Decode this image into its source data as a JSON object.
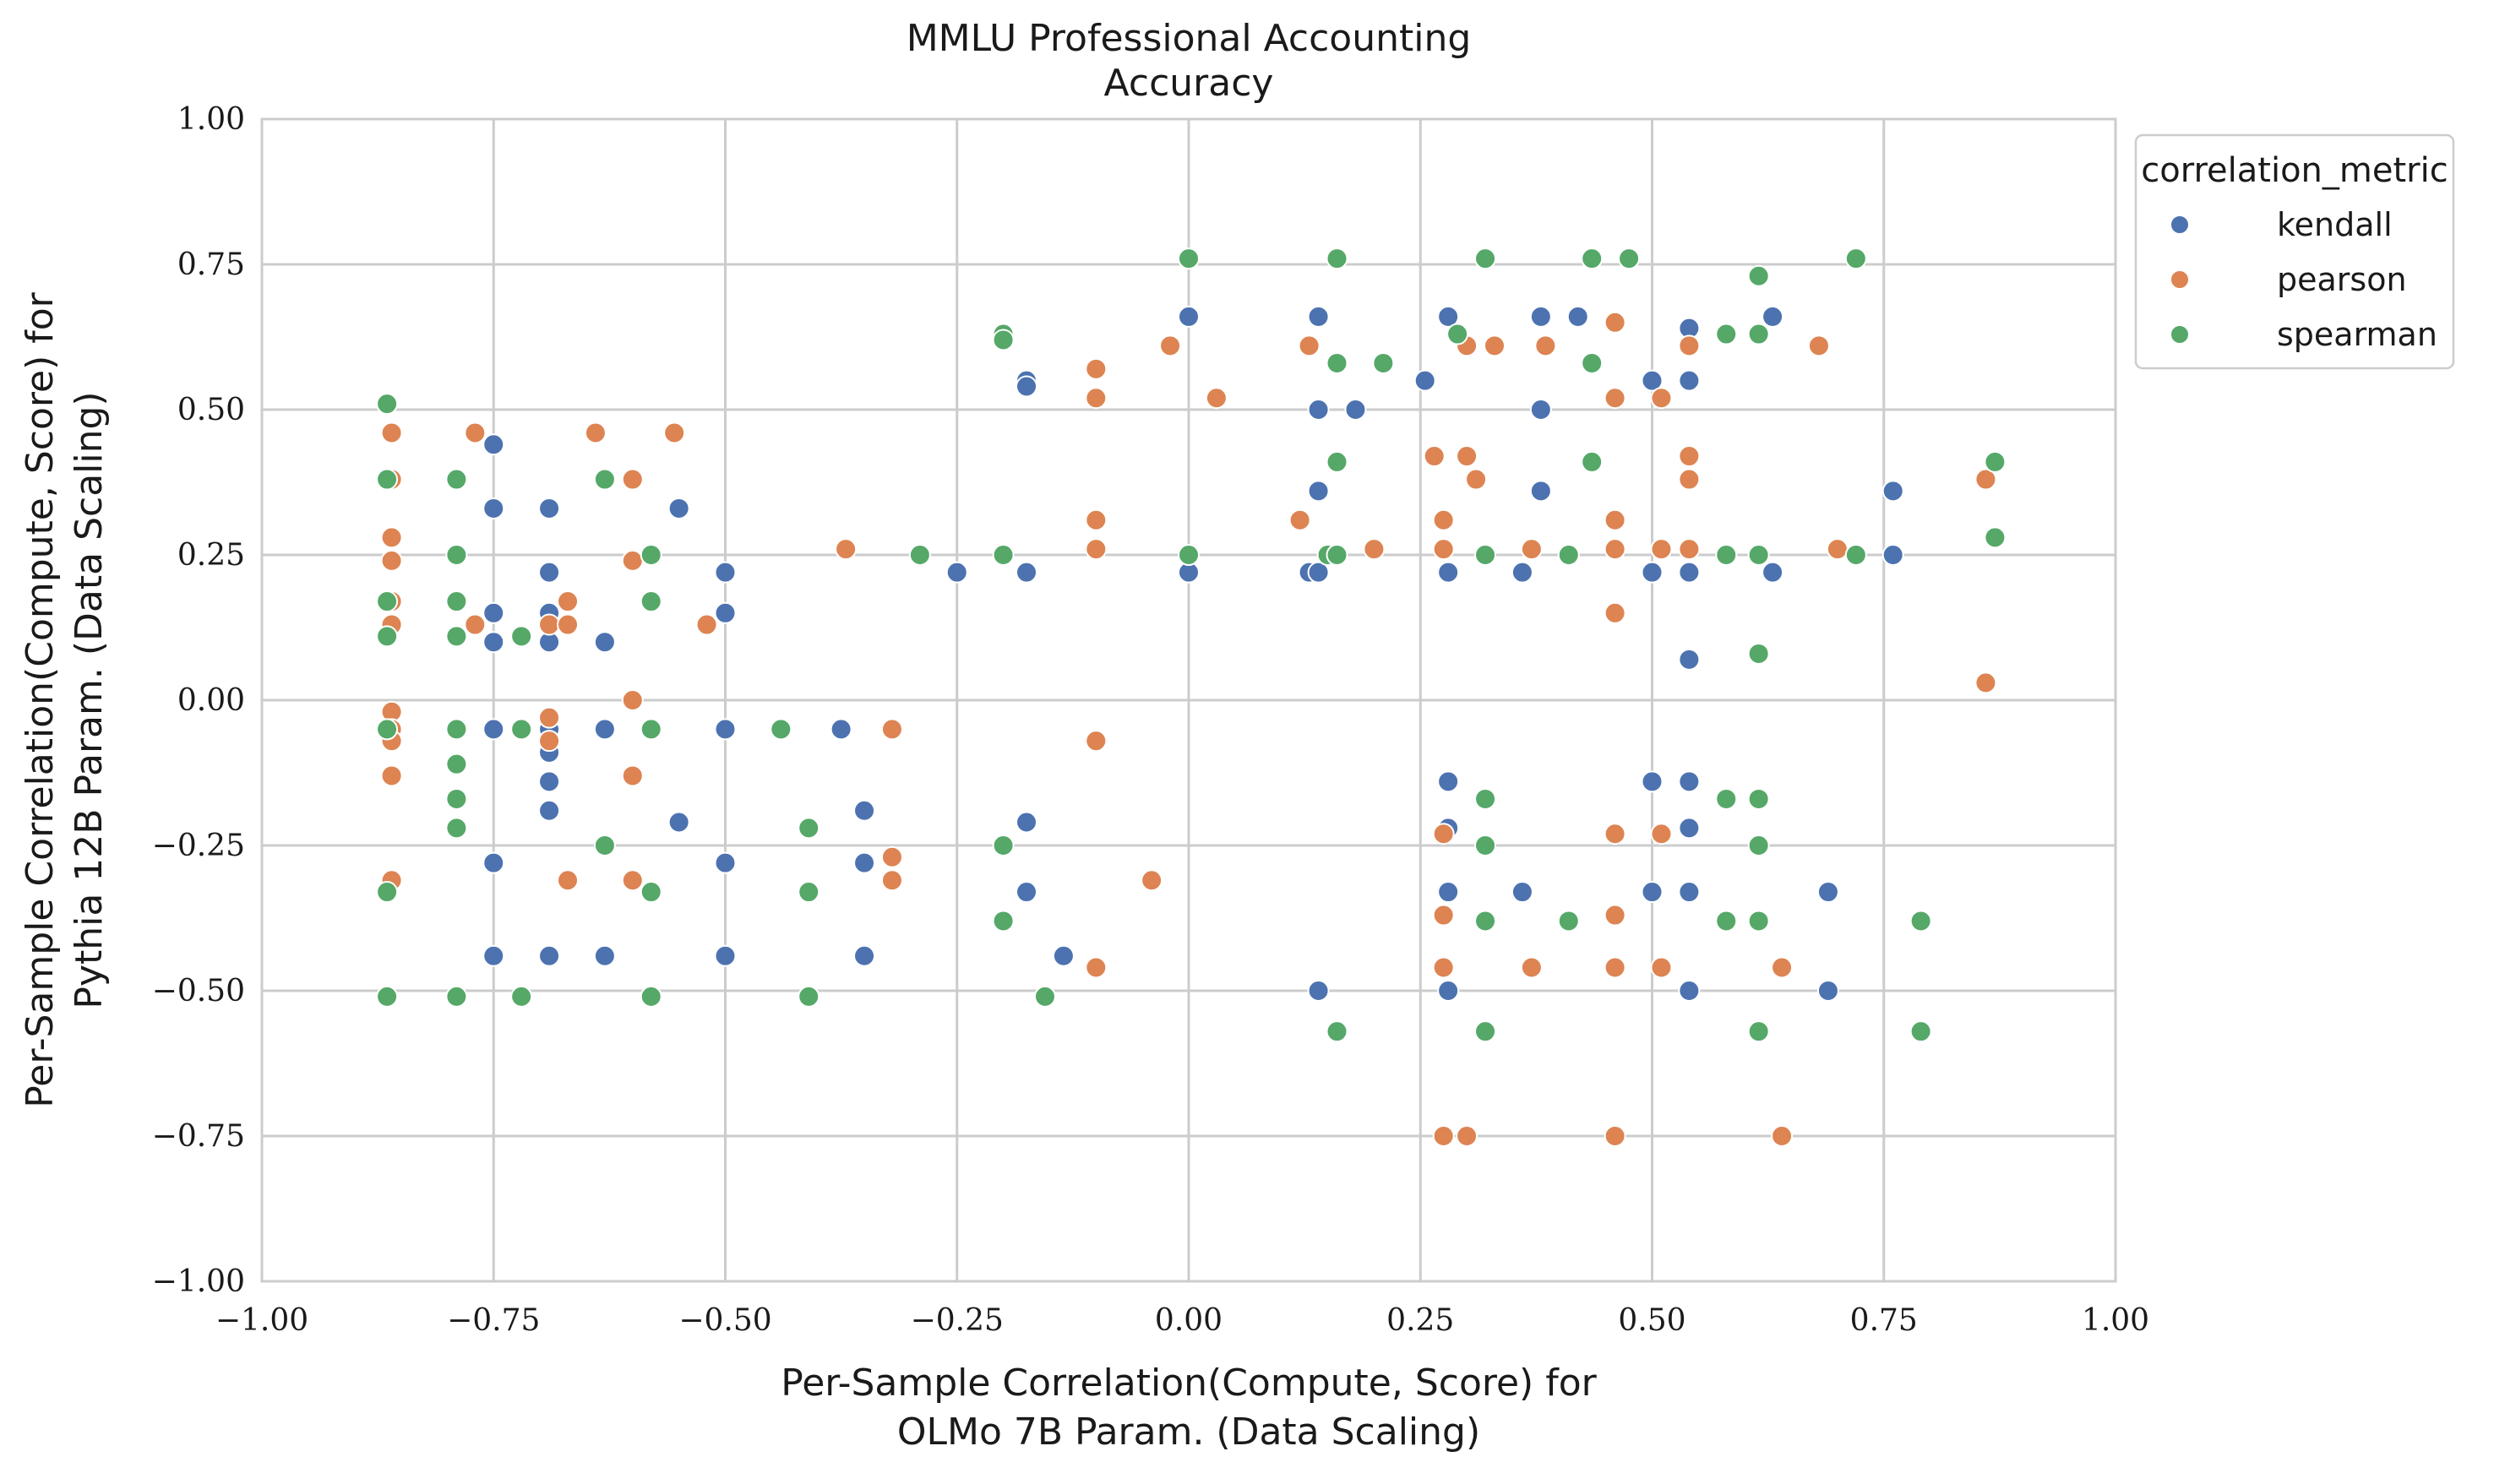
{
  "chart_data": {
    "type": "scatter",
    "title": "MMLU Professional Accounting",
    "subtitle": "Accuracy",
    "xlabel_line1": "Per-Sample Correlation(Compute, Score) for",
    "xlabel_line2": "OLMo 7B Param. (Data Scaling)",
    "ylabel_line1": "Per-Sample Correlation(Compute, Score) for",
    "ylabel_line2": "Pythia 12B Param. (Data Scaling)",
    "xlim": [
      -1.0,
      1.0
    ],
    "ylim": [
      -1.0,
      1.0
    ],
    "x_ticks": [
      "−1.00",
      "−0.75",
      "−0.50",
      "−0.25",
      "0.00",
      "0.25",
      "0.50",
      "0.75",
      "1.00"
    ],
    "y_ticks": [
      "−1.00",
      "−0.75",
      "−0.50",
      "−0.25",
      "0.00",
      "0.25",
      "0.50",
      "0.75",
      "1.00"
    ],
    "grid": true,
    "legend_title": "correlation_metric",
    "legend_position": "outside-top-right",
    "series": [
      {
        "name": "kendall",
        "color": "#4c72b0",
        "points": [
          [
            -0.75,
            0.44
          ],
          [
            -0.75,
            0.33
          ],
          [
            -0.75,
            0.15
          ],
          [
            -0.75,
            0.1
          ],
          [
            -0.75,
            -0.05
          ],
          [
            -0.75,
            -0.28
          ],
          [
            -0.75,
            -0.44
          ],
          [
            -0.69,
            0.33
          ],
          [
            -0.69,
            0.22
          ],
          [
            -0.69,
            0.15
          ],
          [
            -0.69,
            0.1
          ],
          [
            -0.69,
            -0.05
          ],
          [
            -0.69,
            -0.09
          ],
          [
            -0.69,
            -0.14
          ],
          [
            -0.69,
            -0.19
          ],
          [
            -0.69,
            -0.44
          ],
          [
            -0.63,
            0.1
          ],
          [
            -0.63,
            -0.05
          ],
          [
            -0.63,
            -0.44
          ],
          [
            -0.55,
            0.33
          ],
          [
            -0.55,
            -0.21
          ],
          [
            -0.5,
            0.22
          ],
          [
            -0.5,
            0.15
          ],
          [
            -0.5,
            -0.05
          ],
          [
            -0.5,
            -0.28
          ],
          [
            -0.5,
            -0.44
          ],
          [
            -0.375,
            -0.05
          ],
          [
            -0.35,
            -0.19
          ],
          [
            -0.35,
            -0.28
          ],
          [
            -0.35,
            -0.44
          ],
          [
            -0.25,
            0.22
          ],
          [
            -0.175,
            0.55
          ],
          [
            -0.175,
            0.54
          ],
          [
            -0.175,
            0.22
          ],
          [
            -0.175,
            -0.21
          ],
          [
            -0.175,
            -0.33
          ],
          [
            -0.135,
            -0.44
          ],
          [
            0.0,
            0.66
          ],
          [
            0.0,
            0.22
          ],
          [
            0.13,
            0.22
          ],
          [
            0.14,
            0.22
          ],
          [
            0.14,
            0.66
          ],
          [
            0.14,
            0.5
          ],
          [
            0.14,
            0.36
          ],
          [
            0.14,
            -0.5
          ],
          [
            0.18,
            0.5
          ],
          [
            0.255,
            0.55
          ],
          [
            0.28,
            0.66
          ],
          [
            0.28,
            0.22
          ],
          [
            0.28,
            -0.14
          ],
          [
            0.28,
            -0.22
          ],
          [
            0.28,
            -0.33
          ],
          [
            0.28,
            -0.5
          ],
          [
            0.36,
            0.22
          ],
          [
            0.36,
            -0.33
          ],
          [
            0.38,
            0.66
          ],
          [
            0.38,
            0.5
          ],
          [
            0.38,
            0.36
          ],
          [
            0.42,
            0.66
          ],
          [
            0.5,
            0.55
          ],
          [
            0.5,
            0.22
          ],
          [
            0.5,
            -0.14
          ],
          [
            0.5,
            -0.33
          ],
          [
            0.54,
            0.64
          ],
          [
            0.54,
            0.55
          ],
          [
            0.54,
            0.22
          ],
          [
            0.54,
            0.07
          ],
          [
            0.54,
            -0.14
          ],
          [
            0.54,
            -0.22
          ],
          [
            0.54,
            -0.33
          ],
          [
            0.54,
            -0.5
          ],
          [
            0.63,
            0.66
          ],
          [
            0.63,
            0.22
          ],
          [
            0.69,
            -0.33
          ],
          [
            0.69,
            -0.5
          ],
          [
            0.76,
            0.36
          ],
          [
            0.76,
            0.25
          ]
        ]
      },
      {
        "name": "pearson",
        "color": "#dd8452",
        "points": [
          [
            -0.86,
            0.46
          ],
          [
            -0.86,
            0.38
          ],
          [
            -0.86,
            0.28
          ],
          [
            -0.86,
            0.24
          ],
          [
            -0.86,
            0.17
          ],
          [
            -0.86,
            0.13
          ],
          [
            -0.86,
            -0.02
          ],
          [
            -0.86,
            -0.05
          ],
          [
            -0.86,
            -0.07
          ],
          [
            -0.86,
            -0.13
          ],
          [
            -0.86,
            -0.31
          ],
          [
            -0.77,
            0.46
          ],
          [
            -0.77,
            0.13
          ],
          [
            -0.69,
            0.13
          ],
          [
            -0.69,
            -0.03
          ],
          [
            -0.69,
            -0.07
          ],
          [
            -0.67,
            0.17
          ],
          [
            -0.67,
            0.13
          ],
          [
            -0.67,
            -0.31
          ],
          [
            -0.64,
            0.46
          ],
          [
            -0.6,
            0.38
          ],
          [
            -0.6,
            0.24
          ],
          [
            -0.6,
            0.0
          ],
          [
            -0.6,
            -0.13
          ],
          [
            -0.6,
            -0.31
          ],
          [
            -0.555,
            0.46
          ],
          [
            -0.52,
            0.13
          ],
          [
            -0.37,
            0.26
          ],
          [
            -0.32,
            -0.05
          ],
          [
            -0.32,
            -0.27
          ],
          [
            -0.32,
            -0.31
          ],
          [
            -0.1,
            0.57
          ],
          [
            -0.1,
            0.52
          ],
          [
            -0.1,
            0.31
          ],
          [
            -0.1,
            0.26
          ],
          [
            -0.1,
            -0.07
          ],
          [
            -0.1,
            -0.46
          ],
          [
            -0.04,
            -0.31
          ],
          [
            -0.02,
            0.61
          ],
          [
            0.03,
            0.52
          ],
          [
            0.12,
            0.31
          ],
          [
            0.13,
            0.61
          ],
          [
            0.2,
            0.26
          ],
          [
            0.265,
            0.42
          ],
          [
            0.275,
            0.31
          ],
          [
            0.275,
            0.26
          ],
          [
            0.275,
            -0.23
          ],
          [
            0.275,
            -0.37
          ],
          [
            0.275,
            -0.46
          ],
          [
            0.275,
            -0.75
          ],
          [
            0.3,
            0.61
          ],
          [
            0.3,
            0.42
          ],
          [
            0.31,
            0.38
          ],
          [
            0.3,
            -0.75
          ],
          [
            0.33,
            0.61
          ],
          [
            0.37,
            0.26
          ],
          [
            0.37,
            -0.46
          ],
          [
            0.385,
            0.61
          ],
          [
            0.46,
            0.65
          ],
          [
            0.46,
            0.52
          ],
          [
            0.46,
            0.31
          ],
          [
            0.46,
            0.26
          ],
          [
            0.46,
            0.15
          ],
          [
            0.46,
            -0.23
          ],
          [
            0.46,
            -0.37
          ],
          [
            0.46,
            -0.46
          ],
          [
            0.46,
            -0.75
          ],
          [
            0.51,
            0.52
          ],
          [
            0.51,
            0.26
          ],
          [
            0.51,
            -0.23
          ],
          [
            0.51,
            -0.46
          ],
          [
            0.54,
            0.61
          ],
          [
            0.54,
            0.42
          ],
          [
            0.54,
            0.38
          ],
          [
            0.54,
            0.26
          ],
          [
            0.64,
            -0.46
          ],
          [
            0.64,
            -0.75
          ],
          [
            0.68,
            0.61
          ],
          [
            0.7,
            0.26
          ],
          [
            0.86,
            0.38
          ],
          [
            0.86,
            0.03
          ]
        ]
      },
      {
        "name": "spearman",
        "color": "#55a868",
        "points": [
          [
            -0.865,
            0.51
          ],
          [
            -0.865,
            0.38
          ],
          [
            -0.865,
            0.17
          ],
          [
            -0.865,
            0.11
          ],
          [
            -0.865,
            -0.05
          ],
          [
            -0.865,
            -0.33
          ],
          [
            -0.865,
            -0.51
          ],
          [
            -0.79,
            0.38
          ],
          [
            -0.79,
            0.25
          ],
          [
            -0.79,
            0.17
          ],
          [
            -0.79,
            0.11
          ],
          [
            -0.79,
            -0.05
          ],
          [
            -0.79,
            -0.11
          ],
          [
            -0.79,
            -0.17
          ],
          [
            -0.79,
            -0.22
          ],
          [
            -0.79,
            -0.51
          ],
          [
            -0.72,
            0.11
          ],
          [
            -0.72,
            -0.05
          ],
          [
            -0.72,
            -0.51
          ],
          [
            -0.63,
            0.38
          ],
          [
            -0.63,
            -0.25
          ],
          [
            -0.58,
            0.25
          ],
          [
            -0.58,
            0.17
          ],
          [
            -0.58,
            -0.05
          ],
          [
            -0.58,
            -0.33
          ],
          [
            -0.58,
            -0.51
          ],
          [
            -0.44,
            -0.05
          ],
          [
            -0.41,
            -0.22
          ],
          [
            -0.41,
            -0.33
          ],
          [
            -0.41,
            -0.51
          ],
          [
            -0.29,
            0.25
          ],
          [
            -0.2,
            0.63
          ],
          [
            -0.2,
            0.62
          ],
          [
            -0.2,
            0.25
          ],
          [
            -0.2,
            -0.25
          ],
          [
            -0.2,
            -0.38
          ],
          [
            -0.155,
            -0.51
          ],
          [
            0.0,
            0.76
          ],
          [
            0.0,
            0.25
          ],
          [
            0.15,
            0.25
          ],
          [
            0.16,
            0.25
          ],
          [
            0.16,
            0.76
          ],
          [
            0.16,
            0.58
          ],
          [
            0.16,
            0.41
          ],
          [
            0.16,
            -0.57
          ],
          [
            0.21,
            0.58
          ],
          [
            0.29,
            0.63
          ],
          [
            0.32,
            0.76
          ],
          [
            0.32,
            0.25
          ],
          [
            0.32,
            -0.17
          ],
          [
            0.32,
            -0.25
          ],
          [
            0.32,
            -0.38
          ],
          [
            0.32,
            -0.57
          ],
          [
            0.41,
            0.25
          ],
          [
            0.41,
            -0.38
          ],
          [
            0.435,
            0.76
          ],
          [
            0.435,
            0.58
          ],
          [
            0.435,
            0.41
          ],
          [
            0.475,
            0.76
          ],
          [
            0.58,
            0.63
          ],
          [
            0.58,
            0.25
          ],
          [
            0.58,
            -0.17
          ],
          [
            0.58,
            -0.38
          ],
          [
            0.615,
            0.73
          ],
          [
            0.615,
            0.63
          ],
          [
            0.615,
            0.25
          ],
          [
            0.615,
            0.08
          ],
          [
            0.615,
            -0.17
          ],
          [
            0.615,
            -0.25
          ],
          [
            0.615,
            -0.38
          ],
          [
            0.615,
            -0.57
          ],
          [
            0.72,
            0.76
          ],
          [
            0.72,
            0.25
          ],
          [
            0.79,
            -0.38
          ],
          [
            0.79,
            -0.57
          ],
          [
            0.87,
            0.41
          ],
          [
            0.87,
            0.28
          ]
        ]
      }
    ]
  }
}
